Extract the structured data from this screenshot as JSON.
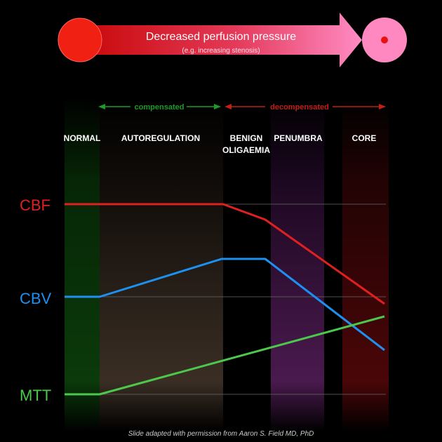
{
  "header": {
    "title": "Decreased perfusion pressure",
    "subtitle": "(e.g. increasing stenosis)"
  },
  "groups": {
    "compensated": "compensated",
    "decompensated": "decompensated"
  },
  "stages": [
    {
      "id": "normal",
      "label": "NORMAL"
    },
    {
      "id": "autoregulation",
      "label": "AUTOREGULATION"
    },
    {
      "id": "benign",
      "label": "BENIGN",
      "label2": "OLIGAEMIA"
    },
    {
      "id": "penumbra",
      "label": "PENUMBRA"
    },
    {
      "id": "core",
      "label": "CORE"
    }
  ],
  "parameters": {
    "cbf": "CBF",
    "cbv": "CBV",
    "mtt": "MTT"
  },
  "colors": {
    "cbf": "#e02020",
    "cbv": "#1e90f0",
    "mtt": "#4cc84c",
    "compensated": "#1e9a2a",
    "decompensated": "#c02018"
  },
  "footer": {
    "credit": "Slide adapted with permission from Aaron S. Field MD, PhD"
  }
}
